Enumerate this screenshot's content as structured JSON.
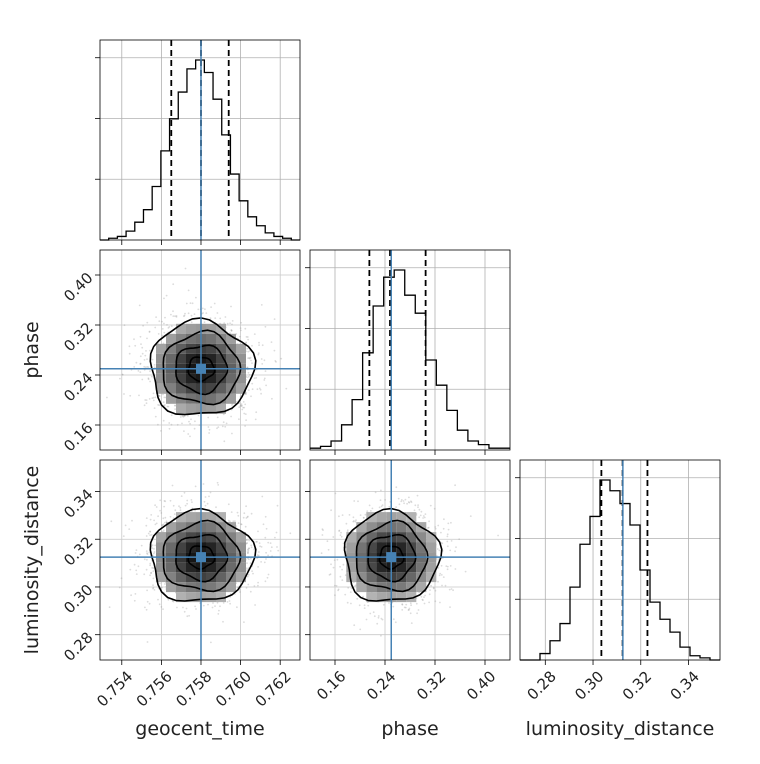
{
  "chart_data": {
    "type": "corner",
    "parameters": [
      "geocent_time",
      "phase",
      "luminosity_distance"
    ],
    "truths": {
      "geocent_time": 0.758,
      "phase": 0.25,
      "luminosity_distance": 0.3125
    },
    "quantiles": {
      "geocent_time": [
        0.7565,
        0.758,
        0.7594
      ],
      "phase": [
        0.215,
        0.248,
        0.305
      ],
      "luminosity_distance": [
        0.3035,
        0.3124,
        0.3228
      ]
    },
    "ranges": {
      "geocent_time": [
        0.7529,
        0.763
      ],
      "phase": [
        0.12,
        0.44
      ],
      "luminosity_distance": [
        0.2694,
        0.3532
      ]
    },
    "ticks": {
      "geocent_time": {
        "values": [
          0.754,
          0.756,
          0.758,
          0.76,
          0.762
        ],
        "labels": [
          "0.754",
          "0.756",
          "0.758",
          "0.760",
          "0.762"
        ]
      },
      "phase": {
        "values": [
          0.16,
          0.24,
          0.32,
          0.4
        ],
        "labels": [
          "0.16",
          "0.24",
          "0.32",
          "0.40"
        ]
      },
      "luminosity_distance": {
        "values": [
          0.28,
          0.3,
          0.32,
          0.34
        ],
        "labels": [
          "0.28",
          "0.30",
          "0.32",
          "0.34"
        ]
      }
    },
    "histograms": {
      "geocent_time": [
        0,
        1,
        2,
        5,
        10,
        17,
        30,
        50,
        68,
        83,
        96,
        101,
        94,
        79,
        59,
        37,
        22,
        13,
        8,
        4,
        2,
        1,
        0
      ],
      "phase": [
        1,
        2,
        5,
        14,
        28,
        54,
        80,
        96,
        100,
        86,
        76,
        50,
        36,
        22,
        11,
        5,
        3,
        1,
        1
      ],
      "luminosity_distance": [
        0,
        0,
        3,
        9,
        17,
        34,
        54,
        67,
        84,
        79,
        73,
        63,
        42,
        27,
        19,
        13,
        6,
        2,
        1,
        0
      ]
    },
    "grid": true,
    "truth_color": "#4682b4"
  }
}
